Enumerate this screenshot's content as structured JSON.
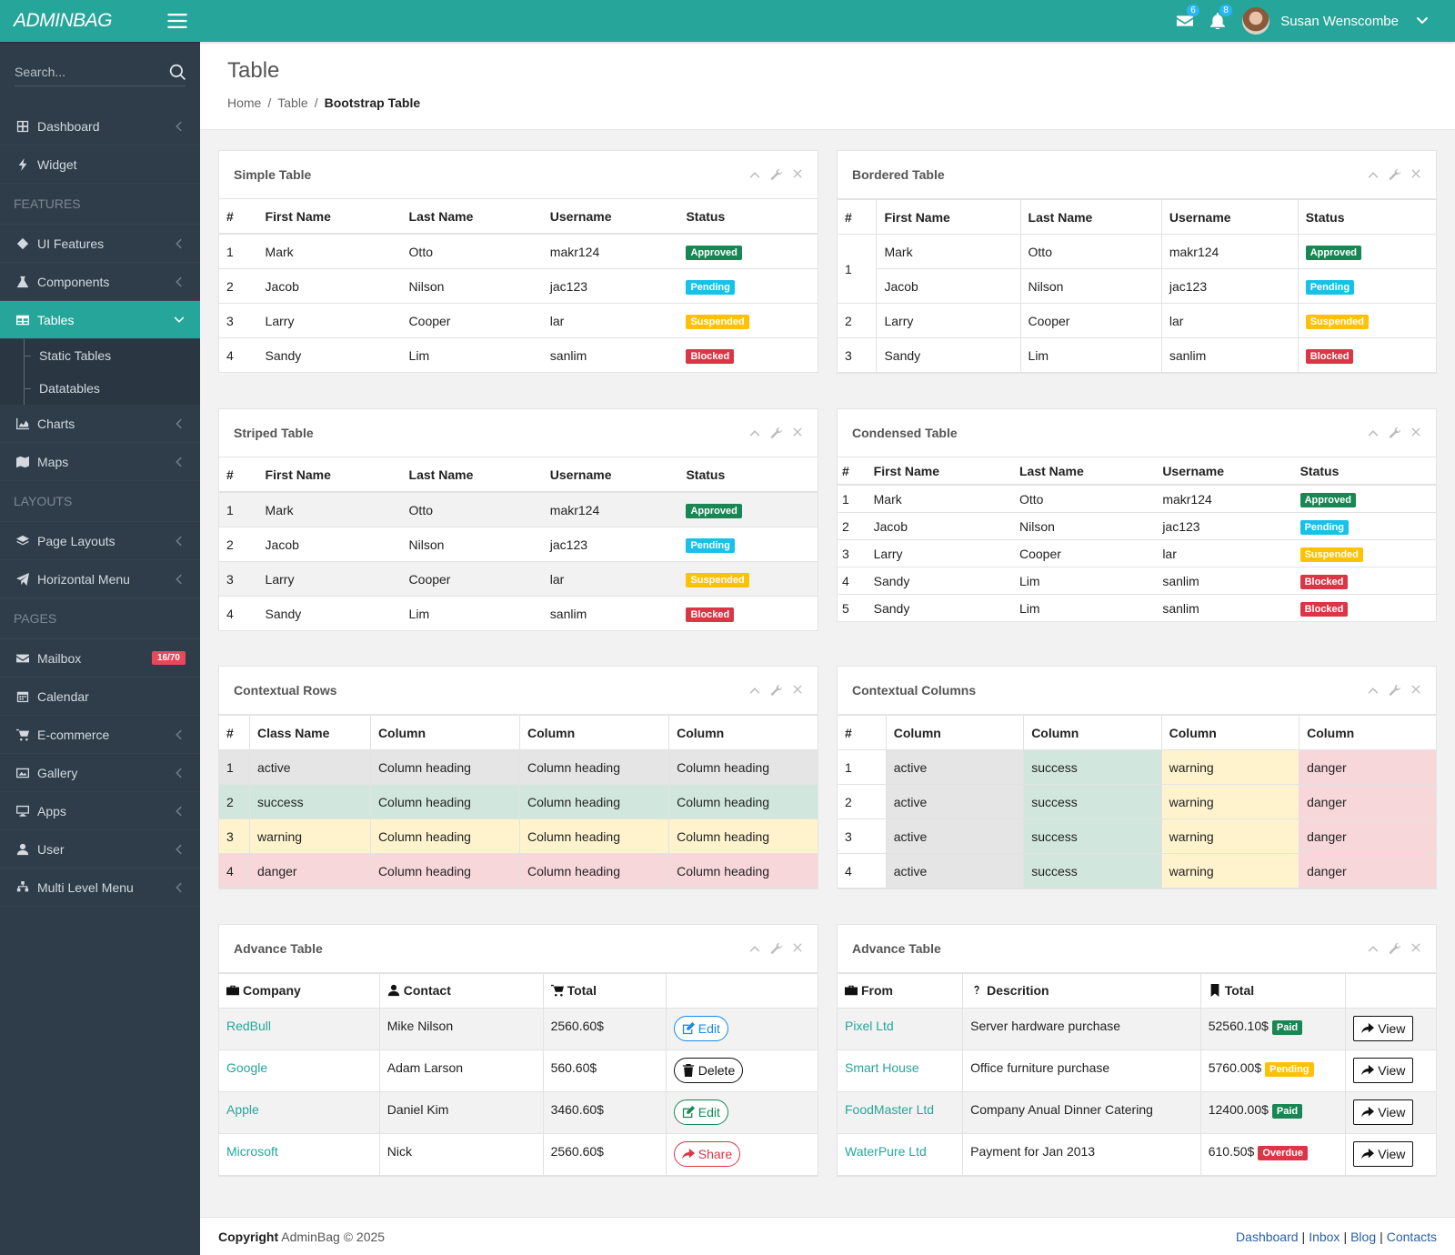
{
  "header": {
    "logo": "ADMINBAG",
    "mail_count": 6,
    "notification_count": 8,
    "user": "Susan Wenscombe"
  },
  "sidebar": {
    "search_placeholder": "Search...",
    "menu": [
      {
        "label": "Dashboard",
        "icon": "dashboard",
        "arrow": true
      },
      {
        "label": "Widget",
        "icon": "bolt"
      },
      {
        "section": "FEATURES"
      },
      {
        "label": "UI Features",
        "icon": "diamond",
        "arrow": true
      },
      {
        "label": "Components",
        "icon": "flask",
        "arrow": true
      },
      {
        "label": "Tables",
        "icon": "table",
        "arrow": true,
        "active": true,
        "submenu": [
          "Static Tables",
          "Datatables"
        ]
      },
      {
        "label": "Charts",
        "icon": "chart",
        "arrow": true
      },
      {
        "label": "Maps",
        "icon": "map",
        "arrow": true
      },
      {
        "section": "LAYOUTS"
      },
      {
        "label": "Page Layouts",
        "icon": "layers",
        "arrow": true
      },
      {
        "label": "Horizontal Menu",
        "icon": "send",
        "arrow": true
      },
      {
        "section": "PAGES"
      },
      {
        "label": "Mailbox",
        "icon": "mail",
        "badge": "16/70"
      },
      {
        "label": "Calendar",
        "icon": "calendar"
      },
      {
        "label": "E-commerce",
        "icon": "cart",
        "arrow": true
      },
      {
        "label": "Gallery",
        "icon": "image",
        "arrow": true
      },
      {
        "label": "Apps",
        "icon": "monitor",
        "arrow": true
      },
      {
        "label": "User",
        "icon": "user",
        "arrow": true
      },
      {
        "label": "Multi Level Menu",
        "icon": "sitemap",
        "arrow": true
      }
    ]
  },
  "page": {
    "title": "Table",
    "breadcrumb": [
      "Home",
      "Table",
      "Bootstrap Table"
    ],
    "breadcrumb_separator": "/"
  },
  "panels": [
    {
      "title": "Simple Table",
      "variant": "plain",
      "headers": [
        "#",
        "First Name",
        "Last Name",
        "Username",
        "Status"
      ],
      "rows": [
        [
          "1",
          "Mark",
          "Otto",
          "makr124",
          {
            "badge": "Approved",
            "style": "success"
          }
        ],
        [
          "2",
          "Jacob",
          "Nilson",
          "jac123",
          {
            "badge": "Pending",
            "style": "info"
          }
        ],
        [
          "3",
          "Larry",
          "Cooper",
          "lar",
          {
            "badge": "Suspended",
            "style": "warning"
          }
        ],
        [
          "4",
          "Sandy",
          "Lim",
          "sanlim",
          {
            "badge": "Blocked",
            "style": "danger"
          }
        ]
      ]
    },
    {
      "title": "Bordered Table",
      "variant": "bordered",
      "headers": [
        "#",
        "First Name",
        "Last Name",
        "Username",
        "Status"
      ],
      "rows": [
        [
          {
            "text": "1",
            "rowspan": 2
          },
          "Mark",
          "Otto",
          "makr124",
          {
            "badge": "Approved",
            "style": "success"
          }
        ],
        [
          "Jacob",
          "Nilson",
          "jac123",
          {
            "badge": "Pending",
            "style": "info"
          }
        ],
        [
          "2",
          "Larry",
          "Cooper",
          "lar",
          {
            "badge": "Suspended",
            "style": "warning"
          }
        ],
        [
          "3",
          "Sandy",
          "Lim",
          "sanlim",
          {
            "badge": "Blocked",
            "style": "danger"
          }
        ]
      ]
    },
    {
      "title": "Striped Table",
      "variant": "striped",
      "headers": [
        "#",
        "First Name",
        "Last Name",
        "Username",
        "Status"
      ],
      "rows": [
        [
          "1",
          "Mark",
          "Otto",
          "makr124",
          {
            "badge": "Approved",
            "style": "success"
          }
        ],
        [
          "2",
          "Jacob",
          "Nilson",
          "jac123",
          {
            "badge": "Pending",
            "style": "info"
          }
        ],
        [
          "3",
          "Larry",
          "Cooper",
          "lar",
          {
            "badge": "Suspended",
            "style": "warning"
          }
        ],
        [
          "4",
          "Sandy",
          "Lim",
          "sanlim",
          {
            "badge": "Blocked",
            "style": "danger"
          }
        ]
      ]
    },
    {
      "title": "Condensed Table",
      "variant": "condensed",
      "headers": [
        "#",
        "First Name",
        "Last Name",
        "Username",
        "Status"
      ],
      "rows": [
        [
          "1",
          "Mark",
          "Otto",
          "makr124",
          {
            "badge": "Approved",
            "style": "success"
          }
        ],
        [
          "2",
          "Jacob",
          "Nilson",
          "jac123",
          {
            "badge": "Pending",
            "style": "info"
          }
        ],
        [
          "3",
          "Larry",
          "Cooper",
          "lar",
          {
            "badge": "Suspended",
            "style": "warning"
          }
        ],
        [
          "4",
          "Sandy",
          "Lim",
          "sanlim",
          {
            "badge": "Blocked",
            "style": "danger"
          }
        ],
        [
          "5",
          "Sandy",
          "Lim",
          "sanlim",
          {
            "badge": "Blocked",
            "style": "danger"
          }
        ]
      ]
    },
    {
      "title": "Contextual Rows",
      "variant": "bordered",
      "headers": [
        "#",
        "Class Name",
        "Column",
        "Column",
        "Column"
      ],
      "row_styles": [
        "active",
        "success",
        "warning",
        "danger"
      ],
      "rows": [
        [
          "1",
          "active",
          "Column heading",
          "Column heading",
          "Column heading"
        ],
        [
          "2",
          "success",
          "Column heading",
          "Column heading",
          "Column heading"
        ],
        [
          "3",
          "warning",
          "Column heading",
          "Column heading",
          "Column heading"
        ],
        [
          "4",
          "danger",
          "Column heading",
          "Column heading",
          "Column heading"
        ]
      ]
    },
    {
      "title": "Contextual Columns",
      "variant": "bordered",
      "headers": [
        "#",
        "Column",
        "Column",
        "Column",
        "Column"
      ],
      "column_styles": [
        null,
        "active",
        "success",
        "warning",
        "danger"
      ],
      "rows": [
        [
          "1",
          "active",
          "success",
          "warning",
          "danger"
        ],
        [
          "2",
          "active",
          "success",
          "warning",
          "danger"
        ],
        [
          "3",
          "active",
          "success",
          "warning",
          "danger"
        ],
        [
          "4",
          "active",
          "success",
          "warning",
          "danger"
        ]
      ]
    },
    {
      "title": "Advance Table",
      "variant": "advance",
      "headers": [
        {
          "text": "Company",
          "icon": "briefcase"
        },
        {
          "text": "Contact",
          "icon": "user"
        },
        {
          "text": "Total",
          "icon": "cart"
        },
        null
      ],
      "rows": [
        [
          {
            "link": "RedBull"
          },
          "Mike Nilson",
          "2560.60$",
          {
            "button": "Edit",
            "style": "info",
            "icon": "edit"
          }
        ],
        [
          {
            "link": "Google"
          },
          "Adam Larson",
          "560.60$",
          {
            "button": "Delete",
            "style": "dark",
            "icon": "trash"
          }
        ],
        [
          {
            "link": "Apple"
          },
          "Daniel Kim",
          "3460.60$",
          {
            "button": "Edit",
            "style": "success",
            "icon": "edit"
          }
        ],
        [
          {
            "link": "Microsoft"
          },
          "Nick",
          "2560.60$",
          {
            "button": "Share",
            "style": "danger",
            "icon": "share"
          }
        ]
      ]
    },
    {
      "title": "Advance Table",
      "variant": "advance",
      "headers": [
        {
          "text": "From",
          "icon": "briefcase"
        },
        {
          "text": "Descrition",
          "icon": "question"
        },
        {
          "text": "Total",
          "icon": "bookmark"
        },
        null
      ],
      "rows": [
        [
          {
            "link": "Pixel Ltd"
          },
          "Server hardware purchase",
          {
            "text": "52560.10$",
            "badge": "Paid",
            "style": "success"
          },
          {
            "button": "View",
            "style": "dark",
            "shape": "square",
            "icon": "share"
          }
        ],
        [
          {
            "link": "Smart House"
          },
          "Office furniture purchase",
          {
            "text": "5760.00$",
            "badge": "Pending",
            "style": "warning"
          },
          {
            "button": "View",
            "style": "dark",
            "shape": "square",
            "icon": "share"
          }
        ],
        [
          {
            "link": "FoodMaster Ltd"
          },
          "Company Anual Dinner Catering",
          {
            "text": "12400.00$",
            "badge": "Paid",
            "style": "success"
          },
          {
            "button": "View",
            "style": "dark",
            "shape": "square",
            "icon": "share"
          }
        ],
        [
          {
            "link": "WaterPure Ltd"
          },
          "Payment for Jan 2013",
          {
            "text": "610.50$",
            "badge": "Overdue",
            "style": "danger"
          },
          {
            "button": "View",
            "style": "dark",
            "shape": "square",
            "icon": "share"
          }
        ]
      ]
    }
  ],
  "footer": {
    "label": "Copyright",
    "text": "AdminBag © 2025",
    "links": [
      "Dashboard",
      "Inbox",
      "Blog",
      "Contacts"
    ],
    "separator": "|"
  }
}
